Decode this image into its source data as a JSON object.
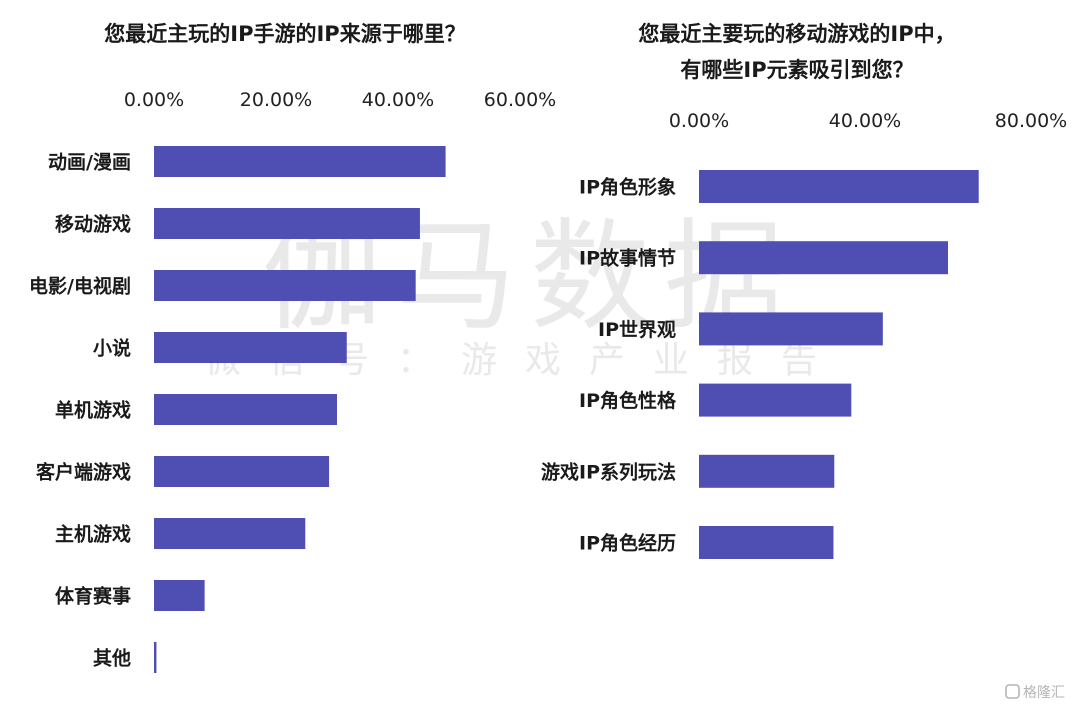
{
  "watermark": {
    "main": "伽马数据",
    "sub": "微信号：游戏产业报告",
    "corner": "格隆汇"
  },
  "colors": {
    "bar": "#4f4fb3"
  },
  "chart_data": [
    {
      "type": "bar",
      "orientation": "horizontal",
      "title": "您最近主玩的IP手游的IP来源于哪里？",
      "categories": [
        "动画/漫画",
        "移动游戏",
        "电影/电视剧",
        "小说",
        "单机游戏",
        "客户端游戏",
        "主机游戏",
        "体育赛事",
        "其他"
      ],
      "values": [
        47.8,
        43.6,
        42.9,
        31.6,
        30.0,
        28.7,
        24.8,
        8.3,
        0.4
      ],
      "xlim": [
        0,
        60
      ],
      "xticks": [
        0,
        20,
        40,
        60
      ],
      "xtick_labels": [
        "0.00%",
        "20.00%",
        "40.00%",
        "60.00%"
      ],
      "axis_position": "top",
      "grid": false
    },
    {
      "type": "bar",
      "orientation": "horizontal",
      "title": "您最近主要玩的移动游戏的IP中，有哪些IP元素吸引到您？",
      "title_lines": [
        "您最近主要玩的移动游戏的IP中，",
        "有哪些IP元素吸引到您？"
      ],
      "categories": [
        "IP角色形象",
        "IP故事情节",
        "IP世界观",
        "IP角色性格",
        "游戏IP系列玩法",
        "IP角色经历"
      ],
      "values": [
        67.4,
        60.0,
        44.3,
        36.7,
        32.6,
        32.4
      ],
      "xlim": [
        0,
        80
      ],
      "xticks": [
        0,
        40,
        80
      ],
      "xtick_labels": [
        "0.00%",
        "40.00%",
        "80.00%"
      ],
      "axis_position": "top",
      "grid": false
    }
  ]
}
